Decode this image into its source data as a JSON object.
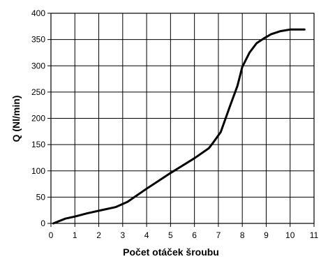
{
  "chart_data": {
    "type": "line",
    "title": "",
    "xlabel": "Počet otáček šroubu",
    "ylabel": "Q (Nl/min)",
    "xlim": [
      0,
      11
    ],
    "ylim": [
      0,
      400
    ],
    "x_ticks": [
      0,
      1,
      2,
      3,
      4,
      5,
      6,
      7,
      8,
      9,
      10,
      11
    ],
    "y_ticks": [
      0,
      50,
      100,
      150,
      200,
      250,
      300,
      350,
      400
    ],
    "x_tick_labels": [
      "0",
      "1",
      "2",
      "3",
      "4",
      "5",
      "6",
      "7",
      "8",
      "9",
      "10",
      "11"
    ],
    "y_tick_labels": [
      "0",
      "50",
      "100",
      "150",
      "200",
      "250",
      "300",
      "350",
      "400"
    ],
    "grid": true,
    "legend": "none",
    "series": [
      {
        "color": "#000000",
        "points": [
          [
            0.1,
            0
          ],
          [
            0.6,
            9
          ],
          [
            1.0,
            13
          ],
          [
            1.5,
            19
          ],
          [
            2.0,
            24
          ],
          [
            2.7,
            31
          ],
          [
            3.2,
            41
          ],
          [
            4.0,
            66
          ],
          [
            5.0,
            96
          ],
          [
            6.0,
            124
          ],
          [
            6.6,
            143
          ],
          [
            6.8,
            155
          ],
          [
            7.1,
            174
          ],
          [
            7.5,
            225
          ],
          [
            7.8,
            262
          ],
          [
            8.0,
            298
          ],
          [
            8.3,
            325
          ],
          [
            8.6,
            343
          ],
          [
            8.9,
            352
          ],
          [
            9.2,
            360
          ],
          [
            9.6,
            366
          ],
          [
            10.0,
            369
          ],
          [
            10.6,
            369
          ]
        ]
      }
    ]
  }
}
